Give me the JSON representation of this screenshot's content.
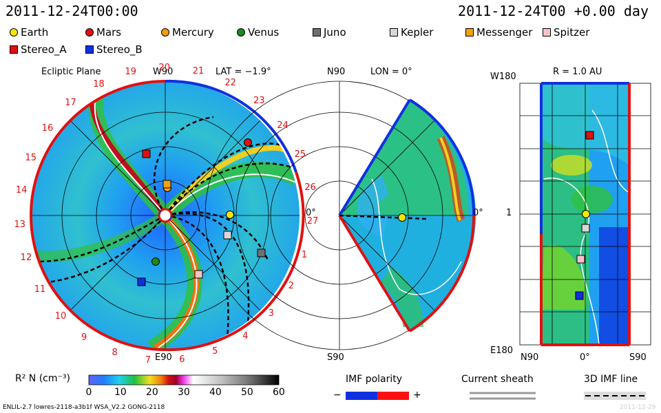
{
  "header": {
    "left_time": "2011-12-24T00:00",
    "right_time": "2011-12-24T00 +0.00 day"
  },
  "legend": [
    {
      "label": "Earth",
      "color": "#f5e600",
      "shape": "circle"
    },
    {
      "label": "Mars",
      "color": "#e01010",
      "shape": "circle"
    },
    {
      "label": "Mercury",
      "color": "#f59a10",
      "shape": "circle"
    },
    {
      "label": "Venus",
      "color": "#1a8a1a",
      "shape": "circle"
    },
    {
      "label": "Juno",
      "color": "#707070",
      "shape": "square"
    },
    {
      "label": "Kepler",
      "color": "#d8d8d8",
      "shape": "square"
    },
    {
      "label": "Messenger",
      "color": "#f5a010",
      "shape": "square"
    },
    {
      "label": "Spitzer",
      "color": "#f8c0c8",
      "shape": "square"
    },
    {
      "label": "Stereo_A",
      "color": "#e01010",
      "shape": "square"
    },
    {
      "label": "Stereo_B",
      "color": "#1030e0",
      "shape": "square"
    }
  ],
  "panels": {
    "ecliptic": {
      "title": "Ecliptic Plane",
      "top_label": "W90",
      "bottom_label": "E90",
      "right_label": "0°",
      "lat": "LAT = −1.9°",
      "carrington": [
        "19",
        "20",
        "21",
        "22",
        "23",
        "24",
        "25",
        "26",
        "27",
        "1",
        "2",
        "3",
        "4",
        "5",
        "6",
        "7",
        "8",
        "9",
        "10",
        "11",
        "12",
        "13",
        "14",
        "15",
        "16",
        "17",
        "18"
      ]
    },
    "meridional": {
      "top_label": "N90",
      "bottom_label": "S90",
      "right_label": "0°",
      "lon": "LON = 0°"
    },
    "sphere": {
      "title": "R = 1.0 AU",
      "left_top": "W180",
      "left_mid": "1",
      "left_bottom": "E180",
      "bottom_left": "N90",
      "bottom_mid": "0°",
      "bottom_right": "S90"
    }
  },
  "colorbar": {
    "label": "R² N (cm⁻³)",
    "ticks": [
      "0",
      "10",
      "20",
      "30",
      "40",
      "50",
      "60"
    ]
  },
  "imf": {
    "title": "IMF polarity",
    "minus": "−",
    "plus": "+",
    "neg_color": "#1030e0",
    "pos_color": "#ff1010"
  },
  "sheath": {
    "title": "Current sheath"
  },
  "imf3d": {
    "title": "3D IMF line"
  },
  "footer": {
    "model": "ENLIL-2.7 lowres-2118-a3b1f WSA_V2.2 GONG-2118",
    "date": "2011-12-29"
  },
  "chart_data": {
    "type": "heatmap",
    "title": "R² N (cm⁻³)",
    "colorbar_range": [
      0,
      60
    ],
    "colorbar_ticks": [
      0,
      10,
      20,
      30,
      40,
      50,
      60
    ],
    "ecliptic_bodies": [
      {
        "name": "Earth",
        "lon_deg": 0,
        "r_au": 1.0
      },
      {
        "name": "Mars",
        "lon_deg": 50,
        "r_au": 1.53
      },
      {
        "name": "Mercury",
        "lon_deg": 95,
        "r_au": 0.45
      },
      {
        "name": "Venus",
        "lon_deg": -110,
        "r_au": 0.72
      },
      {
        "name": "Stereo_A",
        "lon_deg": 107,
        "r_au": 0.96
      },
      {
        "name": "Stereo_B",
        "lon_deg": -110,
        "r_au": 1.0
      }
    ]
  }
}
